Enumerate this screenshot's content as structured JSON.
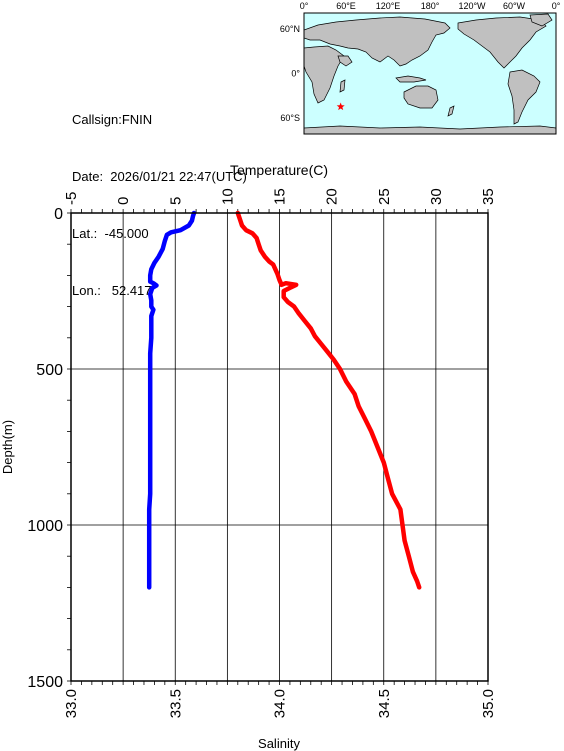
{
  "info": {
    "callsign": "Callsign:FNIN",
    "date": "Date:  2026/01/21 22:47(UTC)",
    "lat": "Lat.:  -45.000",
    "lon": "Lon.:   52.417"
  },
  "colors": {
    "temperature": "#0000ff",
    "salinity": "#ff0000",
    "ocean": "#ccffff",
    "land": "#c0c0c0",
    "marker": "#ff0000"
  },
  "map": {
    "top_labels": [
      "0°",
      "60°E",
      "120°E",
      "180°",
      "120°W",
      "60°W",
      "0°"
    ],
    "lat_labels": [
      "60°N",
      "0°",
      "60°S"
    ],
    "marker": {
      "lon": 52.417,
      "lat": -45.0
    }
  },
  "chart_data": {
    "type": "line",
    "ylabel": "Depth(m)",
    "ylim": [
      0,
      1500
    ],
    "yticks": [
      "0",
      "500",
      "1000",
      "1500"
    ],
    "x_top": {
      "label": "Temperature(C)",
      "lim": [
        -5,
        35
      ],
      "ticks": [
        "-5",
        "0",
        "5",
        "10",
        "15",
        "20",
        "25",
        "30",
        "35"
      ]
    },
    "x_bottom": {
      "label": "Salinity",
      "lim": [
        33.0,
        35.0
      ],
      "ticks": [
        "33.0",
        "33.5",
        "34.0",
        "34.5",
        "35.0"
      ]
    },
    "grid": true,
    "series": [
      {
        "axis": "top",
        "points": [
          [
            6.8,
            0
          ],
          [
            6.7,
            10
          ],
          [
            6.6,
            25
          ],
          [
            6.3,
            40
          ],
          [
            5.5,
            55
          ],
          [
            4.6,
            62
          ],
          [
            4.2,
            70
          ],
          [
            4.0,
            90
          ],
          [
            3.8,
            115
          ],
          [
            3.4,
            140
          ],
          [
            3.0,
            160
          ],
          [
            2.7,
            180
          ],
          [
            2.6,
            200
          ],
          [
            2.6,
            220
          ],
          [
            2.9,
            225
          ],
          [
            3.2,
            232
          ],
          [
            2.8,
            240
          ],
          [
            2.6,
            260
          ],
          [
            2.7,
            280
          ],
          [
            2.7,
            300
          ],
          [
            2.9,
            310
          ],
          [
            2.7,
            330
          ],
          [
            2.7,
            360
          ],
          [
            2.7,
            400
          ],
          [
            2.6,
            450
          ],
          [
            2.6,
            500
          ],
          [
            2.6,
            550
          ],
          [
            2.6,
            600
          ],
          [
            2.6,
            650
          ],
          [
            2.6,
            700
          ],
          [
            2.6,
            750
          ],
          [
            2.6,
            800
          ],
          [
            2.6,
            850
          ],
          [
            2.6,
            900
          ],
          [
            2.5,
            950
          ],
          [
            2.5,
            1000
          ],
          [
            2.5,
            1050
          ],
          [
            2.5,
            1100
          ],
          [
            2.5,
            1150
          ],
          [
            2.5,
            1200
          ]
        ]
      },
      {
        "axis": "bottom",
        "points": [
          [
            33.8,
            0
          ],
          [
            33.81,
            20
          ],
          [
            33.82,
            40
          ],
          [
            33.84,
            55
          ],
          [
            33.87,
            65
          ],
          [
            33.89,
            80
          ],
          [
            33.9,
            100
          ],
          [
            33.91,
            120
          ],
          [
            33.93,
            140
          ],
          [
            33.95,
            155
          ],
          [
            33.97,
            165
          ],
          [
            33.98,
            180
          ],
          [
            33.99,
            195
          ],
          [
            34.0,
            215
          ],
          [
            34.01,
            230
          ],
          [
            34.03,
            225
          ],
          [
            34.08,
            230
          ],
          [
            34.05,
            240
          ],
          [
            34.02,
            250
          ],
          [
            34.02,
            270
          ],
          [
            34.04,
            285
          ],
          [
            34.07,
            300
          ],
          [
            34.09,
            320
          ],
          [
            34.12,
            345
          ],
          [
            34.15,
            370
          ],
          [
            34.17,
            395
          ],
          [
            34.2,
            420
          ],
          [
            34.23,
            445
          ],
          [
            34.26,
            470
          ],
          [
            34.29,
            500
          ],
          [
            34.32,
            540
          ],
          [
            34.36,
            580
          ],
          [
            34.38,
            620
          ],
          [
            34.41,
            660
          ],
          [
            34.44,
            700
          ],
          [
            34.47,
            750
          ],
          [
            34.5,
            800
          ],
          [
            34.52,
            850
          ],
          [
            34.54,
            900
          ],
          [
            34.58,
            950
          ],
          [
            34.59,
            1000
          ],
          [
            34.6,
            1050
          ],
          [
            34.62,
            1100
          ],
          [
            34.64,
            1150
          ],
          [
            34.66,
            1180
          ],
          [
            34.67,
            1200
          ]
        ]
      }
    ]
  }
}
